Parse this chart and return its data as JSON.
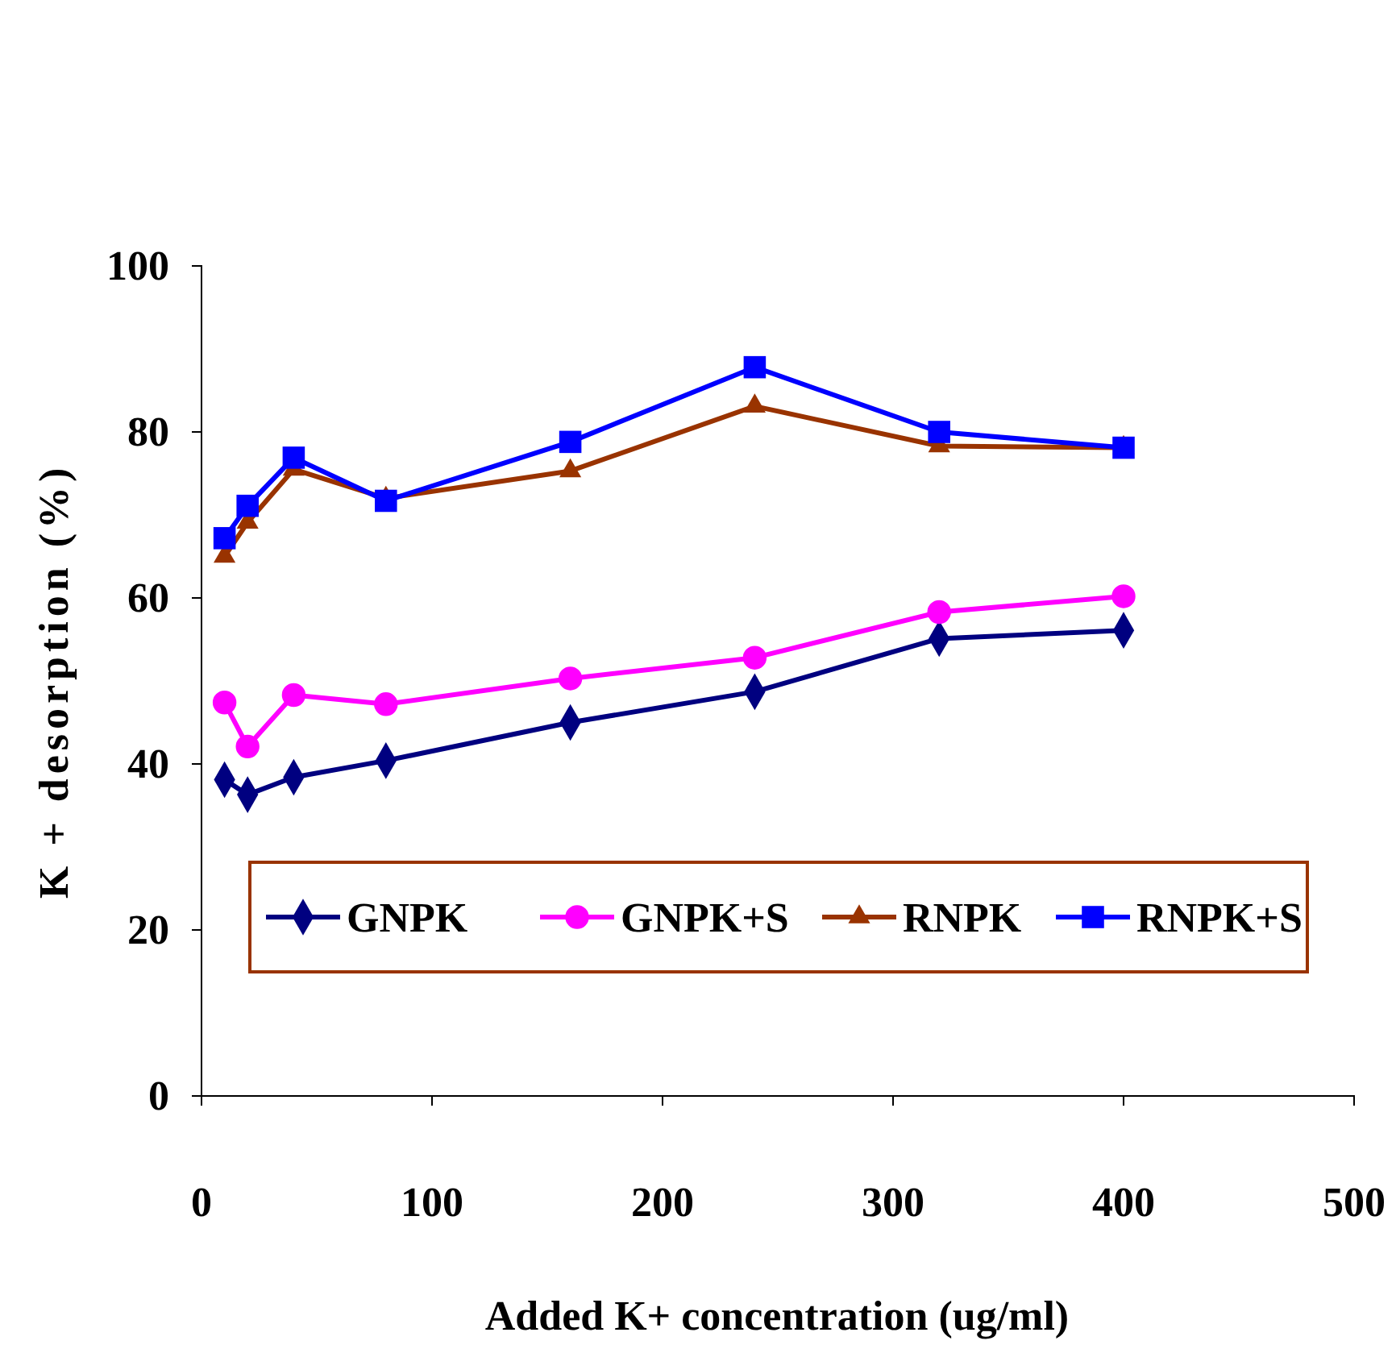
{
  "chart_data": {
    "type": "line",
    "xlabel": "Added K+ concentration (ug/ml)",
    "ylabel": "K + desorption (%)",
    "x": [
      10,
      20,
      40,
      80,
      160,
      240,
      320,
      400
    ],
    "series": [
      {
        "name": "GNPK",
        "color": "#000080",
        "marker": "diamond",
        "values": [
          38.1,
          36.3,
          38.4,
          40.4,
          45.0,
          48.7,
          55.1,
          56.1
        ]
      },
      {
        "name": "GNPK+S",
        "color": "#ff00ff",
        "marker": "circle",
        "values": [
          47.4,
          42.1,
          48.3,
          47.2,
          50.3,
          52.8,
          58.3,
          60.2
        ]
      },
      {
        "name": "RNPK",
        "color": "#993300",
        "marker": "triangle",
        "values": [
          65.0,
          69.1,
          75.5,
          72.0,
          75.3,
          83.1,
          78.3,
          78.1
        ]
      },
      {
        "name": "RNPK+S",
        "color": "#0000ff",
        "marker": "square",
        "values": [
          67.2,
          71.1,
          76.9,
          71.7,
          78.8,
          87.8,
          80.0,
          78.1
        ]
      }
    ],
    "xlim": [
      0,
      500
    ],
    "xticks": [
      0,
      100,
      200,
      300,
      400,
      500
    ],
    "ylim": [
      0,
      100
    ],
    "yticks": [
      0,
      20,
      40,
      60,
      80,
      100
    ],
    "grid": false,
    "legend": "bottom"
  }
}
